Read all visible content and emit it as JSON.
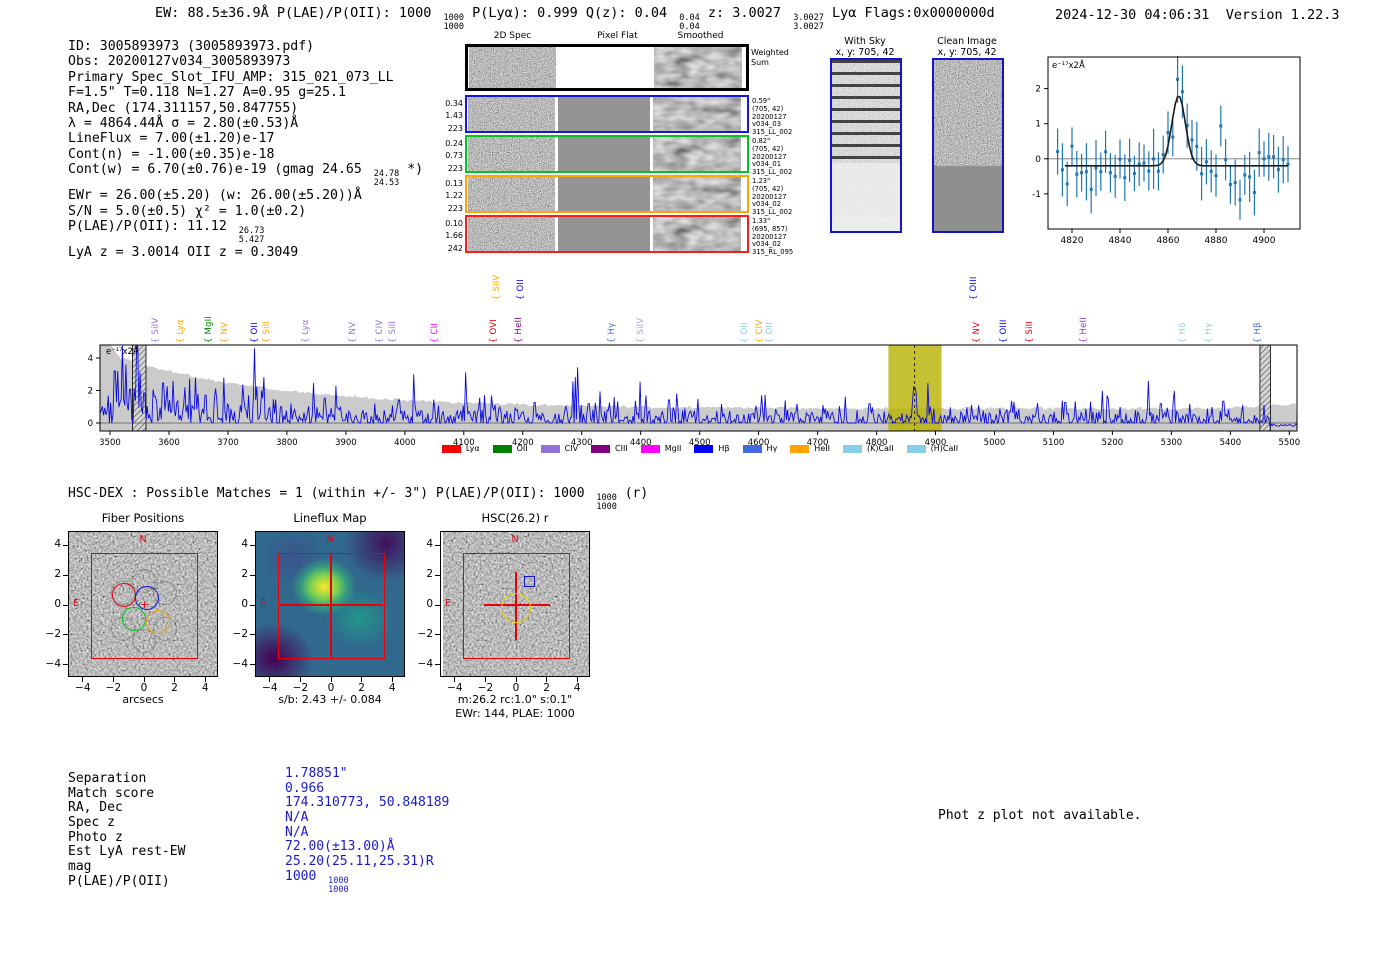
{
  "header": {
    "left_segments": [
      {
        "t": "EW: 88.5±36.9Å  P(LAE)/P(OII): 1000 "
      },
      {
        "f": [
          "1000",
          "1000"
        ]
      },
      {
        "t": "  P(Lyα): 0.999  Q(z): 0.04 "
      },
      {
        "f": [
          "0.04",
          "0.04"
        ]
      },
      {
        "t": "  z: 3.0027 "
      },
      {
        "f": [
          "3.0027",
          "3.0027"
        ]
      },
      {
        "t": " Lyα  Flags:0x0000000d"
      }
    ],
    "timestamp": "2024-12-30 04:06:31",
    "version": "Version 1.22.3"
  },
  "info": {
    "lines": [
      [
        {
          "t": "ID: 3005893973 (3005893973.pdf)"
        }
      ],
      [
        {
          "t": "Obs: 20200127v034_3005893973"
        }
      ],
      [
        {
          "t": "Primary Spec_Slot_IFU_AMP: 315_021_073_LL"
        }
      ],
      [
        {
          "t": "F=1.5\"  T=0.118  N=1.27  A=0.95  g=25.1"
        }
      ],
      [
        {
          "t": "RA,Dec (174.311157,50.847755)"
        }
      ],
      [
        {
          "t": "λ = 4864.44Å  σ = 2.80(±0.53)Å"
        }
      ],
      [
        {
          "t": "LineFlux = 7.00(±1.20)e-17"
        }
      ],
      [
        {
          "t": "Cont(n) = -1.00(±0.35)e-18"
        }
      ],
      [
        {
          "t": "Cont(w) = 6.70(±0.76)e-19 (gmag 24.65 "
        },
        {
          "f": [
            "24.78",
            "24.53"
          ]
        },
        {
          "t": " *)"
        }
      ],
      [
        {
          "t": "EWr = 26.00(±5.20) (w: 26.00(±5.20))Å"
        }
      ],
      [
        {
          "t": "S/N = 5.0(±0.5)  χ² = 1.0(±0.2)"
        }
      ],
      [
        {
          "t": "P(LAE)/P(OII): 11.12 "
        },
        {
          "f": [
            "26.73",
            "5.427"
          ]
        }
      ],
      [
        {
          "t": "LyA z = 3.0014  OII z = 0.3049"
        }
      ]
    ]
  },
  "spec2d": {
    "column_titles": [
      "2D Spec",
      "Pixel Flat",
      "Smoothed"
    ],
    "rows": [
      {
        "border": "#000000",
        "left": [],
        "right": [
          "Weighted",
          "Sum"
        ]
      },
      {
        "border": "#1515e8",
        "left": [
          "0.34",
          "1.43",
          "223"
        ],
        "right": [
          "0.59\"",
          "(705, 42)",
          "20200127",
          "v034_03",
          "315_LL_002"
        ]
      },
      {
        "border": "#00c421",
        "left": [
          "0.24",
          "0.73",
          "223"
        ],
        "right": [
          "0.82\"",
          "(705, 42)",
          "20200127",
          "v034_01",
          "315_LL_002"
        ]
      },
      {
        "border": "#ffa500",
        "left": [
          "0.13",
          "1.22",
          "223"
        ],
        "right": [
          "1.23\"",
          "(705, 42)",
          "20200127",
          "v034_02",
          "315_LL_002"
        ]
      },
      {
        "border": "#ff1a1a",
        "left": [
          "0.10",
          "1.66",
          "242"
        ],
        "right": [
          "1.33\"",
          "(695, 857)",
          "20200127",
          "v034_02",
          "315_RL_095"
        ]
      }
    ]
  },
  "with_sky": {
    "title": "With Sky",
    "coords": "x, y: 705, 42"
  },
  "clean_image": {
    "title": "Clean Image",
    "coords": "x, y: 705, 42"
  },
  "hsc": {
    "header_segments": [
      {
        "t": "HSC-DEX : Possible Matches = 1 (within +/- 3\")  P(LAE)/P(OII): 1000 "
      },
      {
        "f": [
          "1000",
          "1000"
        ]
      },
      {
        "t": " (r)"
      }
    ]
  },
  "cutouts": {
    "xticks": [
      -4,
      -2,
      0,
      2,
      4
    ],
    "yticks": [
      4,
      2,
      0,
      -2,
      -4
    ],
    "compass": {
      "north": "N",
      "east": "E"
    },
    "panels": [
      {
        "title": "Fiber Positions",
        "caption": "arcsecs"
      },
      {
        "title": "Lineflux Map",
        "caption": "s/b: 2.43 +/- 0.084"
      },
      {
        "title": "HSC(26.2) r",
        "caption": "m:26.2 rc:1.0\" s:0.1\"",
        "caption2": "EWr: 144, PLAE: 1000"
      }
    ]
  },
  "match_table": {
    "rows": [
      {
        "label": "Separation",
        "value": [
          {
            "t": "1.78851\""
          }
        ]
      },
      {
        "label": "Match score",
        "value": [
          {
            "t": "0.966"
          }
        ]
      },
      {
        "label": "RA, Dec",
        "value": [
          {
            "t": "174.310773, 50.848189"
          }
        ]
      },
      {
        "label": "Spec z",
        "value": [
          {
            "t": "N/A"
          }
        ]
      },
      {
        "label": "Photo z",
        "value": [
          {
            "t": "N/A"
          }
        ]
      },
      {
        "label": "Est LyA rest-EW",
        "value": [
          {
            "t": "72.00(±13.00)Å"
          }
        ]
      },
      {
        "label": "mag",
        "value": [
          {
            "t": "25.20(25.11,25.31)R"
          }
        ]
      },
      {
        "label": "P(LAE)/P(OII)",
        "value": [
          {
            "t": "1000 "
          },
          {
            "f": [
              "1000",
              "1000"
            ]
          }
        ]
      }
    ]
  },
  "notice": "Phot z plot not available.",
  "chart_data": [
    {
      "type": "scatter",
      "name": "line-fit-inset",
      "unit_label": "e⁻¹⁷x2Å",
      "xlim": [
        4810,
        4915
      ],
      "ylim": [
        -2.0,
        2.9
      ],
      "xticks": [
        4820,
        4840,
        4860,
        4880,
        4900
      ],
      "yticks": [
        -1,
        0,
        1,
        2
      ],
      "fit": {
        "shape": "gaussian",
        "center": 4864.44,
        "sigma": 2.8,
        "amplitude": 2.0,
        "baseline": -0.2
      },
      "points": {
        "x_start": 4814,
        "x_end": 4910,
        "x_step": 2,
        "noise_sigma": 0.38,
        "err_base": 0.5,
        "seed": 9
      },
      "marker_color": "#1f77b4",
      "fit_color": "#1a1a1a"
    },
    {
      "type": "line",
      "name": "full-spectrum",
      "unit_label": "e⁻¹⁷x2Å",
      "xlim": [
        3483,
        5513
      ],
      "ylim": [
        -0.49,
        4.8
      ],
      "xticks": [
        3500,
        3600,
        3700,
        3800,
        3900,
        4000,
        4100,
        4200,
        4300,
        4400,
        4500,
        4600,
        4700,
        4800,
        4900,
        5000,
        5100,
        5200,
        5300,
        5400,
        5500
      ],
      "yticks": [
        0,
        2,
        4
      ],
      "line_color": "#0b0bdf",
      "envelope_color": "#cbcbcb",
      "highlight": {
        "x0": 4820,
        "x1": 4910,
        "color": "#b8b000",
        "dashed_line_x": 4864.44
      },
      "masked_bands": [
        [
          3538,
          3561
        ],
        [
          5450,
          5468
        ]
      ],
      "peak": {
        "center": 4864.44,
        "sigma": 2.8,
        "amplitude": 2.3
      },
      "spikes": [
        [
          3508,
          4.3
        ],
        [
          3513,
          3.2
        ],
        [
          3521,
          4.75
        ],
        [
          3527,
          3.6
        ],
        [
          3534,
          2.8
        ],
        [
          3545,
          4.5
        ],
        [
          3551,
          3.1
        ],
        [
          3558,
          2.5
        ],
        [
          3576,
          2.2
        ],
        [
          3590,
          3.3
        ],
        [
          3607,
          2.6
        ],
        [
          3627,
          2.2
        ],
        [
          3645,
          2.8
        ],
        [
          3662,
          2.3
        ],
        [
          3680,
          1.9
        ],
        [
          3745,
          4.6
        ],
        [
          3757,
          2.0
        ],
        [
          3990,
          1.9
        ],
        [
          4104,
          1.8
        ],
        [
          4220,
          1.7
        ],
        [
          4312,
          1.6
        ],
        [
          4448,
          1.9
        ],
        [
          4605,
          1.7
        ],
        [
          4788,
          1.6
        ],
        [
          5120,
          1.7
        ],
        [
          5282,
          1.6
        ],
        [
          5388,
          1.8
        ]
      ],
      "noise": {
        "seed": 1337,
        "base_sigma": 0.5,
        "left_boost": 1.2,
        "decay": 480
      },
      "envelope": {
        "base": 0.88,
        "amp": 3.35,
        "decay": 270,
        "seed": 42
      },
      "legend": [
        {
          "label": "Lyα",
          "color": "#ff0000"
        },
        {
          "label": "OII",
          "color": "#008000"
        },
        {
          "label": "CIV",
          "color": "#9370db"
        },
        {
          "label": "CIII",
          "color": "#800080"
        },
        {
          "label": "MgII",
          "color": "#ff00ff"
        },
        {
          "label": "Hβ",
          "color": "#0000ff"
        },
        {
          "label": "Hγ",
          "color": "#4169e1"
        },
        {
          "label": "HeII",
          "color": "#ffa500"
        },
        {
          "label": "(K)CaII",
          "color": "#87ceeb"
        },
        {
          "label": "(H)CaII",
          "color": "#87ceeb"
        }
      ],
      "line_labels": [
        {
          "t": "SiIV",
          "c": "#9370db",
          "x": 3575,
          "r": 0
        },
        {
          "t": "Lyα",
          "c": "#ffa500",
          "x": 3617,
          "r": 0
        },
        {
          "t": "MgII",
          "c": "#008000",
          "x": 3664,
          "r": 0
        },
        {
          "t": "NV",
          "c": "#ffa500",
          "x": 3692,
          "r": 0
        },
        {
          "t": "OII",
          "c": "#0000ff",
          "x": 3742,
          "r": 0
        },
        {
          "t": "SiII",
          "c": "#ffa500",
          "x": 3762,
          "r": 0
        },
        {
          "t": "Lyα",
          "c": "#9370db",
          "x": 3829,
          "r": 0
        },
        {
          "t": "NV",
          "c": "#9370db",
          "x": 3909,
          "r": 0
        },
        {
          "t": "CIV",
          "c": "#9370db",
          "x": 3954,
          "r": 0
        },
        {
          "t": "SiII",
          "c": "#9370db",
          "x": 3976,
          "r": 0
        },
        {
          "t": "CII",
          "c": "#ff00ff",
          "x": 4048,
          "r": 0
        },
        {
          "t": "OVI",
          "c": "#e8000b",
          "x": 4147,
          "r": 0
        },
        {
          "t": "SiIV",
          "c": "#ffa500",
          "x": 4152,
          "r": 1
        },
        {
          "t": "HeII",
          "c": "#800080",
          "x": 4190,
          "r": 0
        },
        {
          "t": "OII",
          "c": "#0000ff",
          "x": 4193,
          "r": 1
        },
        {
          "t": "Hγ",
          "c": "#4169e1",
          "x": 4347,
          "r": 0
        },
        {
          "t": "SiIV",
          "c": "#b39ddb",
          "x": 4397,
          "r": 0
        },
        {
          "t": "OII",
          "c": "#87ceeb",
          "x": 4573,
          "r": 0
        },
        {
          "t": "CIV",
          "c": "#ffa500",
          "x": 4598,
          "r": 0
        },
        {
          "t": "OII",
          "c": "#87ceeb",
          "x": 4616,
          "r": 0
        },
        {
          "t": "OIII",
          "c": "#0000ff",
          "x": 4962,
          "r": 1
        },
        {
          "t": "NV",
          "c": "#e8000b",
          "x": 4967,
          "r": 0
        },
        {
          "t": "OIII",
          "c": "#0000ff",
          "x": 5012,
          "r": 0
        },
        {
          "t": "SiII",
          "c": "#e8000b",
          "x": 5056,
          "r": 0
        },
        {
          "t": "HeII",
          "c": "#9932cc",
          "x": 5149,
          "r": 0
        },
        {
          "t": "Hδ",
          "c": "#87ceeb",
          "x": 5316,
          "r": 0
        },
        {
          "t": "Hγ",
          "c": "#87ceeb",
          "x": 5360,
          "r": 0
        },
        {
          "t": "Hβ",
          "c": "#4169e1",
          "x": 5443,
          "r": 0
        }
      ]
    }
  ]
}
